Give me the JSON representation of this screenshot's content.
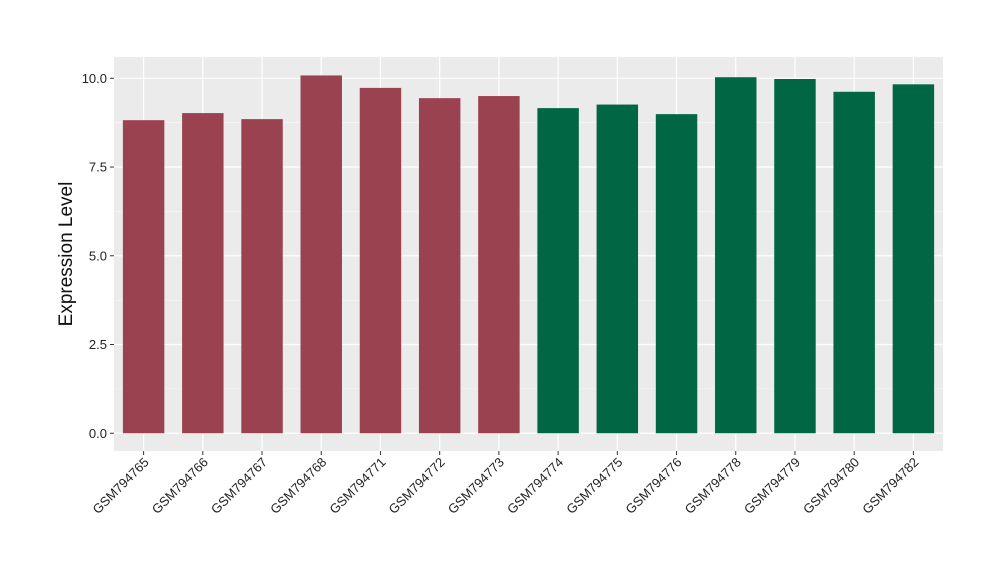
{
  "chart_data": {
    "type": "bar",
    "title": "",
    "xlabel": "",
    "ylabel": "Expression Level",
    "ylim": [
      -0.5,
      10.6
    ],
    "yticks": [
      "0.0",
      "2.5",
      "5.0",
      "7.5",
      "10.0"
    ],
    "ytick_values": [
      0,
      2.5,
      5,
      7.5,
      10
    ],
    "grid": true,
    "panel_background": "#ebebeb",
    "grid_color": "#ffffff",
    "categories": [
      "GSM794765",
      "GSM794766",
      "GSM794767",
      "GSM794768",
      "GSM794771",
      "GSM794772",
      "GSM794773",
      "GSM794774",
      "GSM794775",
      "GSM794776",
      "GSM794778",
      "GSM794779",
      "GSM794780",
      "GSM794782"
    ],
    "values": [
      8.82,
      9.02,
      8.85,
      10.08,
      9.73,
      9.44,
      9.5,
      9.16,
      9.26,
      8.99,
      10.03,
      9.98,
      9.62,
      9.83
    ],
    "group_colors": [
      "#9b4250",
      "#9b4250",
      "#9b4250",
      "#9b4250",
      "#9b4250",
      "#9b4250",
      "#9b4250",
      "#006644",
      "#006644",
      "#006644",
      "#006644",
      "#006644",
      "#006644",
      "#006644"
    ]
  }
}
